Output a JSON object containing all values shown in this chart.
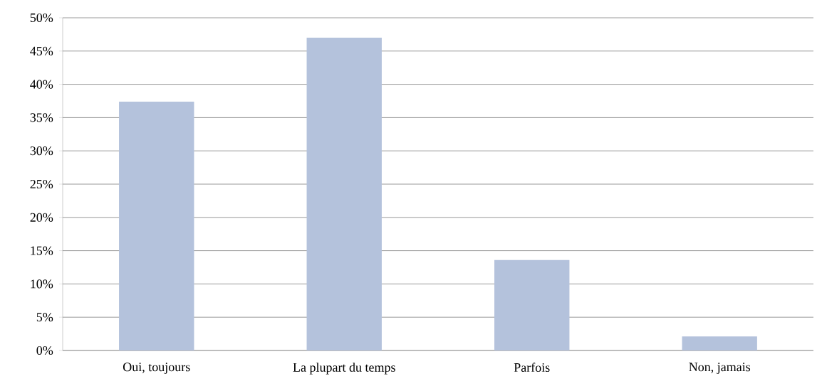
{
  "chart_data": {
    "type": "bar",
    "categories": [
      "Oui, toujours",
      "La plupart du temps",
      "Parfois",
      "Non, jamais"
    ],
    "values": [
      37.4,
      47.0,
      13.6,
      2.1
    ],
    "color": "#b4c2dc",
    "ylim": [
      0,
      50
    ],
    "yticks": [
      {
        "value": 0,
        "label": "0%"
      },
      {
        "value": 5,
        "label": "5%"
      },
      {
        "value": 10,
        "label": "10%"
      },
      {
        "value": 15,
        "label": "15%"
      },
      {
        "value": 20,
        "label": "20%"
      },
      {
        "value": 25,
        "label": "25%"
      },
      {
        "value": 30,
        "label": "30%"
      },
      {
        "value": 35,
        "label": "35%"
      },
      {
        "value": 40,
        "label": "40%"
      },
      {
        "value": 45,
        "label": "45%"
      },
      {
        "value": 50,
        "label": "50%"
      }
    ],
    "grid": "y"
  }
}
